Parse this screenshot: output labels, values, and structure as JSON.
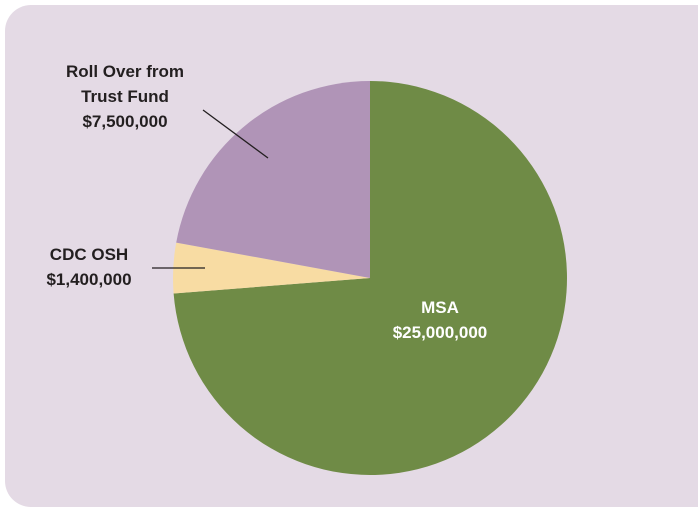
{
  "chart_data": {
    "type": "pie",
    "categories": [
      "MSA",
      "CDC OSH",
      "Roll Over from Trust Fund"
    ],
    "values": [
      25000000,
      1400000,
      7500000
    ],
    "value_labels": [
      "$25,000,000",
      "$1,400,000",
      "$7,500,000"
    ],
    "colors": [
      "#6f8b46",
      "#f8dca3",
      "#b094b7"
    ]
  }
}
